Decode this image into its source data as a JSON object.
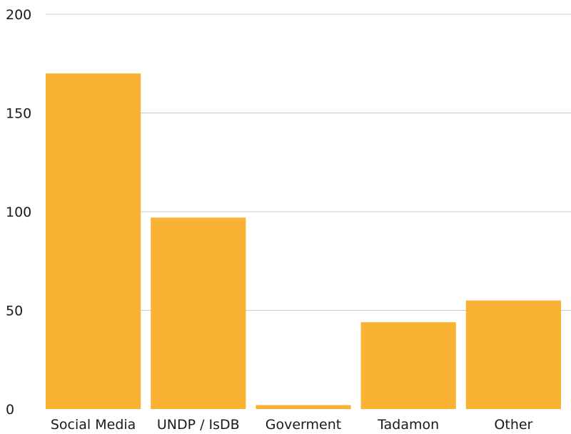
{
  "chart_data": {
    "type": "bar",
    "title": "",
    "xlabel": "",
    "ylabel": "",
    "categories": [
      "Social Media",
      "UNDP / IsDB",
      "Goverment",
      "Tadamon",
      "Other"
    ],
    "values": [
      170,
      97,
      2,
      44,
      55
    ],
    "ylim": [
      0,
      200
    ],
    "yticks": [
      0,
      50,
      100,
      150,
      200
    ],
    "ytick_labels": [
      "0",
      "50",
      "100",
      "150",
      "200"
    ],
    "grid": true,
    "legend": "none",
    "bar_color": "#F9B233",
    "grid_color": "#cccccc"
  }
}
